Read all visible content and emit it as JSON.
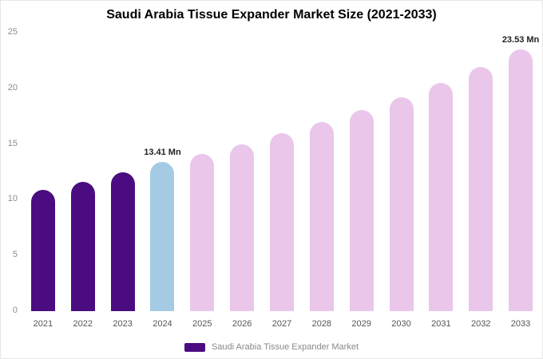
{
  "chart_data": {
    "type": "bar",
    "title": "Saudi Arabia Tissue Expander Market Size (2021-2033)",
    "xlabel": "",
    "ylabel": "",
    "ylim": [
      0,
      25
    ],
    "yticks": [
      0,
      5,
      10,
      15,
      20,
      25
    ],
    "grid": false,
    "categories": [
      "2021",
      "2022",
      "2023",
      "2024",
      "2025",
      "2026",
      "2027",
      "2028",
      "2029",
      "2030",
      "2031",
      "2032",
      "2033"
    ],
    "values": [
      10.9,
      11.6,
      12.45,
      13.41,
      14.1,
      15.0,
      15.95,
      16.95,
      18.05,
      19.2,
      20.5,
      21.9,
      23.53
    ],
    "bar_colors": [
      "#4A0C80",
      "#4A0C80",
      "#4A0C80",
      "#A5CBE4",
      "#E9C6EA",
      "#E9C6EA",
      "#E9C6EA",
      "#E9C6EA",
      "#E9C6EA",
      "#E9C6EA",
      "#E9C6EA",
      "#E9C6EA",
      "#E9C6EA"
    ],
    "annotations": [
      {
        "index": 3,
        "text": "13.41 Mn"
      },
      {
        "index": 12,
        "text": "23.53 Mn"
      }
    ],
    "legend": {
      "position": "bottom",
      "items": [
        {
          "label": "Saudi Arabia Tissue Expander Market",
          "color": "#4A0C80"
        }
      ]
    }
  }
}
